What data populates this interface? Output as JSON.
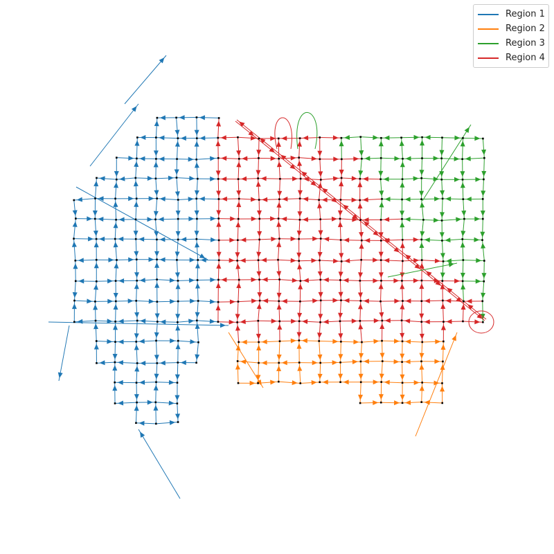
{
  "chart_data": {
    "type": "network-map",
    "title": "",
    "legend": {
      "placement": "top-right",
      "entries": [
        {
          "name": "Region 1",
          "color": "#1f77b4"
        },
        {
          "name": "Region 2",
          "color": "#ff7f0e"
        },
        {
          "name": "Region 3",
          "color": "#2ca02c"
        },
        {
          "name": "Region 4",
          "color": "#d62728"
        }
      ]
    },
    "node_color": "#000000",
    "axes_visible": false,
    "grid": false
  }
}
